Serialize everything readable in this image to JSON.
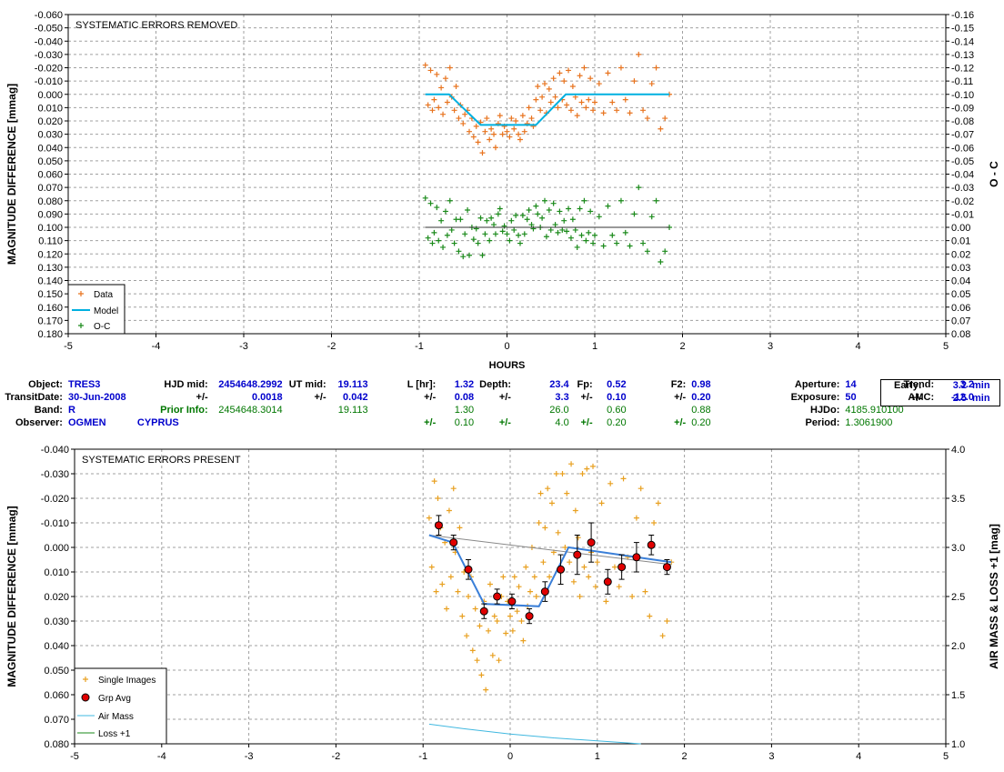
{
  "top": {
    "title": "SYSTEMATIC ERRORS REMOVED",
    "ylabel": "MAGNITUDE DIFFERENCE [mmag]",
    "y2label": "O - C",
    "xlabel": "HOURS",
    "legend": [
      "Data",
      "Model",
      "O-C"
    ],
    "yticks": [
      "-0.060",
      "-0.050",
      "-0.040",
      "-0.030",
      "-0.020",
      "-0.010",
      "0.000",
      "0.010",
      "0.020",
      "0.030",
      "0.040",
      "0.050",
      "0.060",
      "0.070",
      "0.080",
      "0.090",
      "0.100",
      "0.110",
      "0.120",
      "0.130",
      "0.140",
      "0.150",
      "0.160",
      "0.170",
      "0.180"
    ],
    "y2ticks": [
      "-0.16",
      "-0.15",
      "-0.14",
      "-0.13",
      "-0.12",
      "-0.11",
      "-0.10",
      "-0.09",
      "-0.08",
      "-0.07",
      "-0.06",
      "-0.05",
      "-0.04",
      "-0.03",
      "-0.02",
      "-0.01",
      "0.00",
      "0.01",
      "0.02",
      "0.03",
      "0.04",
      "0.05",
      "0.06",
      "0.07",
      "0.08"
    ],
    "xticks": [
      "-5",
      "-4",
      "-3",
      "-2",
      "-1",
      "0",
      "1",
      "2",
      "3",
      "4",
      "5"
    ]
  },
  "bottom": {
    "title": "SYSTEMATIC ERRORS PRESENT",
    "ylabel": "MAGNITUDE DIFFERENCE [mmag]",
    "y2label": "AIR MASS & LOSS +1 [mag]",
    "legend": [
      "Single Images",
      "Grp Avg",
      "Air Mass",
      "Loss +1"
    ],
    "yticks": [
      "-0.040",
      "-0.030",
      "-0.020",
      "-0.010",
      "0.000",
      "0.010",
      "0.020",
      "0.030",
      "0.040",
      "0.050",
      "0.060",
      "0.070",
      "0.080"
    ],
    "y2ticks": [
      "4.0",
      "3.5",
      "3.0",
      "2.5",
      "2.0",
      "1.5",
      "1.0"
    ],
    "xticks": [
      "-5",
      "-4",
      "-3",
      "-2",
      "-1",
      "0",
      "1",
      "2",
      "3",
      "4",
      "5"
    ]
  },
  "info": {
    "object_label": "Object:",
    "object": "TRES3",
    "hjd_label": "HJD mid:",
    "hjd": "2454648.2992",
    "ut_label": "UT mid:",
    "ut": "19.113",
    "l_label": "L [hr]:",
    "l": "1.32",
    "depth_label": "Depth:",
    "depth": "23.4",
    "fp_label": "Fp:",
    "fp": "0.52",
    "f2_label": "F2:",
    "f2": "0.98",
    "aperture_label": "Aperture:",
    "aperture": "14",
    "trend_label": "Trend:",
    "trend": "3.2",
    "early_label": "Early:",
    "early": "3.2",
    "early_unit": "min",
    "transitdate_label": "TransitDate:",
    "transitdate": "30-Jun-2008",
    "pm": "+/-",
    "hjd_err": "0.0018",
    "ut_err": "0.042",
    "l_err": "0.08",
    "depth_err": "3.3",
    "fp_err": "0.10",
    "f2_err": "0.20",
    "exposure_label": "Exposure:",
    "exposure": "50",
    "amc_label": "AMC:",
    "amc": "-12.0",
    "early_err": "2.5",
    "early_err_unit": "min",
    "band_label": "Band:",
    "band": "R",
    "prior_label": "Prior Info:",
    "prior_hjd": "2454648.3014",
    "prior_ut": "19.113",
    "prior_l": "1.30",
    "prior_depth": "26.0",
    "prior_fp": "0.60",
    "prior_f2": "0.88",
    "hjdo_label": "HJDo:",
    "hjdo": "4185.910100",
    "observer_label": "Observer:",
    "observer": "OGMEN",
    "location": "CYPRUS",
    "prior_l_err": "0.10",
    "prior_depth_err": "4.0",
    "prior_fp_err": "0.20",
    "prior_f2_err": "0.20",
    "period_label": "Period:",
    "period": "1.3061900"
  },
  "colors": {
    "data": "#e8731e",
    "model": "#00b0e0",
    "oc": "#1a8a1a",
    "single": "#e8a020",
    "grp": "#e00000",
    "grpmodel": "#3a7fd8",
    "airmass": "#40b8e0",
    "loss": "#1a8a1a"
  },
  "chart_data": [
    {
      "type": "scatter",
      "title": "SYSTEMATIC ERRORS REMOVED",
      "xlabel": "HOURS",
      "ylabel": "MAGNITUDE DIFFERENCE [mmag]",
      "y2label": "O - C",
      "xlim": [
        -5,
        5
      ],
      "ylim": [
        -0.06,
        0.18
      ],
      "y2lim": [
        -0.16,
        0.08
      ],
      "series": [
        {
          "name": "Data",
          "x": [
            -0.93,
            -0.9,
            -0.87,
            -0.85,
            -0.83,
            -0.8,
            -0.78,
            -0.75,
            -0.73,
            -0.7,
            -0.68,
            -0.65,
            -0.63,
            -0.6,
            -0.58,
            -0.55,
            -0.53,
            -0.5,
            -0.48,
            -0.45,
            -0.43,
            -0.4,
            -0.38,
            -0.35,
            -0.33,
            -0.3,
            -0.28,
            -0.25,
            -0.23,
            -0.2,
            -0.18,
            -0.15,
            -0.13,
            -0.1,
            -0.08,
            -0.05,
            -0.03,
            0.0,
            0.03,
            0.05,
            0.08,
            0.1,
            0.13,
            0.15,
            0.18,
            0.2,
            0.23,
            0.25,
            0.28,
            0.3,
            0.33,
            0.35,
            0.38,
            0.4,
            0.43,
            0.45,
            0.48,
            0.5,
            0.53,
            0.55,
            0.58,
            0.6,
            0.63,
            0.65,
            0.68,
            0.7,
            0.73,
            0.75,
            0.78,
            0.8,
            0.83,
            0.85,
            0.88,
            0.9,
            0.93,
            0.95,
            0.98,
            1.0,
            1.05,
            1.1,
            1.15,
            1.2,
            1.25,
            1.3,
            1.35,
            1.4,
            1.45,
            1.5,
            1.55,
            1.6,
            1.65,
            1.7,
            1.75,
            1.8,
            1.85
          ],
          "y": [
            -0.022,
            0.008,
            -0.018,
            0.012,
            0.004,
            -0.015,
            0.01,
            -0.005,
            0.015,
            -0.012,
            0.006,
            -0.02,
            0.002,
            0.012,
            -0.006,
            0.018,
            0.008,
            0.022,
            0.015,
            0.012,
            0.028,
            0.018,
            0.032,
            0.024,
            0.036,
            0.021,
            0.044,
            0.028,
            0.018,
            0.034,
            0.026,
            0.03,
            0.04,
            0.022,
            0.016,
            0.03,
            0.024,
            0.028,
            0.032,
            0.018,
            0.026,
            0.02,
            0.03,
            0.034,
            0.016,
            0.028,
            0.022,
            0.01,
            0.018,
            0.024,
            0.004,
            -0.006,
            0.012,
            0.002,
            -0.008,
            0.014,
            -0.004,
            0.006,
            -0.012,
            0.002,
            0.01,
            -0.016,
            0.004,
            -0.01,
            0.008,
            -0.018,
            0.012,
            -0.006,
            0.002,
            0.016,
            -0.014,
            0.006,
            -0.02,
            0.01,
            0.004,
            -0.012,
            0.012,
            0.006,
            -0.008,
            0.014,
            -0.016,
            0.006,
            0.012,
            -0.02,
            0.004,
            0.014,
            -0.01,
            -0.03,
            0.012,
            0.018,
            -0.008,
            -0.02,
            0.026,
            0.018,
            0.0
          ],
          "color": "#e8731e"
        },
        {
          "name": "Model",
          "x": [
            -0.93,
            -0.66,
            -0.3,
            0.33,
            0.67,
            1.85
          ],
          "y": [
            0.0,
            0.0,
            0.023,
            0.023,
            0.0,
            0.0
          ]
        },
        {
          "name": "O-C",
          "x": [
            -0.93,
            -0.9,
            -0.87,
            -0.85,
            -0.83,
            -0.8,
            -0.78,
            -0.75,
            -0.73,
            -0.7,
            -0.68,
            -0.65,
            -0.63,
            -0.6,
            -0.58,
            -0.55,
            -0.53,
            -0.5,
            -0.48,
            -0.45,
            -0.43,
            -0.4,
            -0.38,
            -0.35,
            -0.33,
            -0.3,
            -0.28,
            -0.25,
            -0.23,
            -0.2,
            -0.18,
            -0.15,
            -0.13,
            -0.1,
            -0.08,
            -0.05,
            -0.03,
            0.0,
            0.03,
            0.05,
            0.08,
            0.1,
            0.13,
            0.15,
            0.18,
            0.2,
            0.23,
            0.25,
            0.28,
            0.3,
            0.33,
            0.35,
            0.38,
            0.4,
            0.43,
            0.45,
            0.48,
            0.5,
            0.53,
            0.55,
            0.58,
            0.6,
            0.63,
            0.65,
            0.68,
            0.7,
            0.73,
            0.75,
            0.78,
            0.8,
            0.83,
            0.85,
            0.88,
            0.9,
            0.93,
            0.95,
            0.98,
            1.0,
            1.05,
            1.1,
            1.15,
            1.2,
            1.25,
            1.3,
            1.35,
            1.4,
            1.45,
            1.5,
            1.55,
            1.6,
            1.65,
            1.7,
            1.75,
            1.8,
            1.85
          ],
          "y": [
            0.078,
            0.108,
            0.082,
            0.112,
            0.104,
            0.085,
            0.11,
            0.095,
            0.115,
            0.088,
            0.106,
            0.08,
            0.102,
            0.112,
            0.094,
            0.118,
            0.094,
            0.122,
            0.105,
            0.087,
            0.121,
            0.1,
            0.109,
            0.101,
            0.112,
            0.093,
            0.121,
            0.105,
            0.095,
            0.11,
            0.093,
            0.098,
            0.105,
            0.09,
            0.086,
            0.103,
            0.099,
            0.105,
            0.11,
            0.095,
            0.102,
            0.091,
            0.106,
            0.112,
            0.091,
            0.105,
            0.094,
            0.087,
            0.098,
            0.101,
            0.084,
            0.09,
            0.1,
            0.093,
            0.08,
            0.107,
            0.087,
            0.102,
            0.082,
            0.098,
            0.104,
            0.088,
            0.102,
            0.095,
            0.103,
            0.086,
            0.108,
            0.094,
            0.102,
            0.115,
            0.086,
            0.106,
            0.08,
            0.11,
            0.104,
            0.088,
            0.112,
            0.106,
            0.092,
            0.114,
            0.084,
            0.106,
            0.112,
            0.08,
            0.104,
            0.114,
            0.09,
            0.07,
            0.112,
            0.118,
            0.092,
            0.08,
            0.126,
            0.118,
            0.1
          ],
          "color": "#1a8a1a"
        },
        {
          "name": "O-C zero line",
          "x": [
            -0.93,
            1.85
          ],
          "y": [
            0.1,
            0.1
          ]
        }
      ]
    },
    {
      "type": "scatter",
      "title": "SYSTEMATIC ERRORS PRESENT",
      "ylabel": "MAGNITUDE DIFFERENCE [mmag]",
      "y2label": "AIR MASS & LOSS +1 [mag]",
      "xlim": [
        -5,
        5
      ],
      "ylim": [
        -0.04,
        0.08
      ],
      "y2lim": [
        1.0,
        4.0
      ],
      "series": [
        {
          "name": "Single Images",
          "x": [
            -0.93,
            -0.9,
            -0.87,
            -0.85,
            -0.83,
            -0.8,
            -0.78,
            -0.75,
            -0.73,
            -0.7,
            -0.68,
            -0.65,
            -0.63,
            -0.6,
            -0.58,
            -0.55,
            -0.53,
            -0.5,
            -0.48,
            -0.45,
            -0.43,
            -0.4,
            -0.38,
            -0.35,
            -0.33,
            -0.3,
            -0.28,
            -0.25,
            -0.23,
            -0.2,
            -0.18,
            -0.15,
            -0.13,
            -0.1,
            -0.08,
            -0.05,
            -0.03,
            0.0,
            0.03,
            0.05,
            0.08,
            0.1,
            0.13,
            0.15,
            0.18,
            0.2,
            0.23,
            0.25,
            0.28,
            0.3,
            0.33,
            0.35,
            0.38,
            0.4,
            0.43,
            0.45,
            0.48,
            0.5,
            0.53,
            0.55,
            0.58,
            0.6,
            0.63,
            0.65,
            0.68,
            0.7,
            0.73,
            0.75,
            0.78,
            0.8,
            0.83,
            0.85,
            0.88,
            0.9,
            0.93,
            0.95,
            0.98,
            1.0,
            1.05,
            1.1,
            1.15,
            1.2,
            1.25,
            1.3,
            1.35,
            1.4,
            1.45,
            1.5,
            1.55,
            1.6,
            1.65,
            1.7,
            1.75,
            1.8,
            1.85
          ],
          "y": [
            -0.012,
            0.008,
            -0.027,
            0.018,
            -0.02,
            -0.008,
            0.015,
            -0.002,
            0.025,
            -0.015,
            0.012,
            -0.024,
            0.002,
            0.018,
            -0.008,
            0.028,
            0.01,
            0.036,
            0.02,
            0.012,
            0.042,
            0.025,
            0.046,
            0.032,
            0.052,
            0.022,
            0.058,
            0.034,
            0.015,
            0.044,
            0.028,
            0.03,
            0.046,
            0.02,
            0.012,
            0.035,
            0.022,
            0.028,
            0.034,
            0.012,
            0.026,
            0.016,
            0.03,
            0.038,
            0.008,
            0.024,
            0.018,
            0.0,
            0.012,
            0.02,
            -0.01,
            -0.022,
            0.006,
            -0.008,
            -0.024,
            0.012,
            -0.018,
            0.002,
            -0.03,
            -0.006,
            0.01,
            -0.03,
            0.0,
            -0.022,
            0.006,
            -0.034,
            0.014,
            -0.015,
            -0.004,
            0.02,
            -0.03,
            0.008,
            -0.032,
            0.012,
            0.002,
            -0.033,
            0.016,
            0.006,
            -0.018,
            0.022,
            -0.026,
            0.008,
            0.016,
            -0.028,
            0.004,
            0.02,
            -0.012,
            -0.024,
            0.018,
            0.028,
            -0.01,
            -0.018,
            0.036,
            0.03,
            0.006
          ],
          "color": "#e8a020"
        },
        {
          "name": "Grp Avg",
          "x": [
            -0.82,
            -0.65,
            -0.48,
            -0.3,
            -0.15,
            0.02,
            0.22,
            0.4,
            0.58,
            0.77,
            0.93,
            1.12,
            1.28,
            1.45,
            1.62,
            1.8
          ],
          "y": [
            -0.009,
            -0.002,
            0.009,
            0.026,
            0.02,
            0.022,
            0.028,
            0.018,
            0.009,
            0.003,
            -0.002,
            0.014,
            0.008,
            0.004,
            -0.001,
            0.008
          ],
          "err": [
            0.004,
            0.003,
            0.004,
            0.003,
            0.003,
            0.003,
            0.003,
            0.004,
            0.006,
            0.008,
            0.008,
            0.005,
            0.005,
            0.006,
            0.004,
            0.003
          ]
        },
        {
          "name": "Model",
          "x": [
            -0.93,
            -0.66,
            -0.3,
            0.33,
            0.67,
            1.85
          ],
          "y": [
            -0.005,
            -0.002,
            0.023,
            0.024,
            0.0,
            0.006
          ]
        },
        {
          "name": "Air Mass",
          "x": [
            -0.93,
            -0.5,
            0.0,
            0.5,
            1.0,
            1.5
          ],
          "y2": [
            1.2,
            1.15,
            1.1,
            1.06,
            1.03,
            1.0
          ]
        }
      ]
    }
  ]
}
